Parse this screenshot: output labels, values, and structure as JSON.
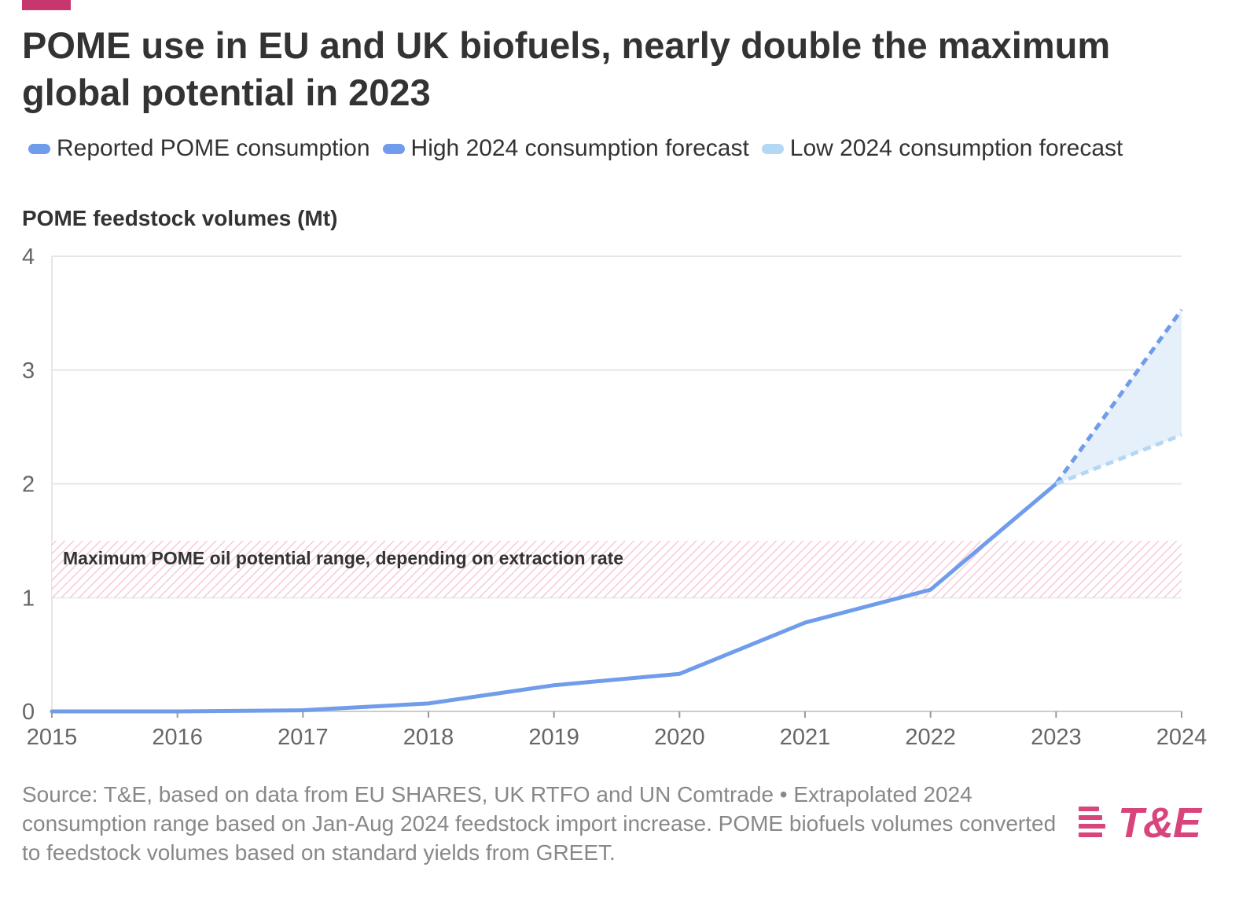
{
  "title": "POME use in EU and UK biofuels, nearly double the maximum global potential in 2023",
  "legend": [
    {
      "label": "Reported POME consumption",
      "color": "#6f9ceb"
    },
    {
      "label": "High 2024 consumption forecast",
      "color": "#6f9ceb"
    },
    {
      "label": "Low 2024 consumption forecast",
      "color": "#b4d7f4"
    }
  ],
  "source": "Source: T&E, based on data from EU SHARES, UK RTFO and UN Comtrade • Extrapolated 2024 consumption range based on Jan-Aug 2024 feedstock import increase. POME biofuels volumes converted to feedstock volumes based on standard yields from GREET.",
  "logo_text": "T&E",
  "colors": {
    "accent": "#c8366e",
    "reported": "#6f9ceb",
    "high": "#6f9ceb",
    "low": "#b4d7f4",
    "forecast_fill": "#e6f0fa",
    "band_hatch": "#f4a7bf",
    "grid": "#e6e6e6",
    "axis_text": "#666666"
  },
  "chart_data": {
    "type": "line",
    "ylabel": "POME feedstock volumes (Mt)",
    "xlim": [
      2015,
      2024
    ],
    "ylim": [
      0,
      4
    ],
    "x_ticks": [
      "2015",
      "2016",
      "2017",
      "2018",
      "2019",
      "2020",
      "2021",
      "2022",
      "2023",
      "2024"
    ],
    "y_ticks": [
      "0",
      "1",
      "2",
      "3",
      "4"
    ],
    "grid": true,
    "series": [
      {
        "name": "Reported POME consumption",
        "style": "solid",
        "points": [
          [
            2015,
            0.0
          ],
          [
            2016,
            0.0
          ],
          [
            2017,
            0.01
          ],
          [
            2018,
            0.07
          ],
          [
            2019,
            0.23
          ],
          [
            2020,
            0.33
          ],
          [
            2021,
            0.78
          ],
          [
            2022,
            1.07
          ],
          [
            2023,
            2.0
          ]
        ]
      },
      {
        "name": "High 2024 consumption forecast",
        "style": "dashed",
        "points": [
          [
            2023,
            2.0
          ],
          [
            2024,
            3.53
          ]
        ]
      },
      {
        "name": "Low 2024 consumption forecast",
        "style": "dashed",
        "points": [
          [
            2023,
            2.0
          ],
          [
            2024,
            2.43
          ]
        ]
      }
    ],
    "band": {
      "label": "Maximum POME oil potential range, depending on extraction rate",
      "y_from": 1.0,
      "y_to": 1.5
    }
  }
}
